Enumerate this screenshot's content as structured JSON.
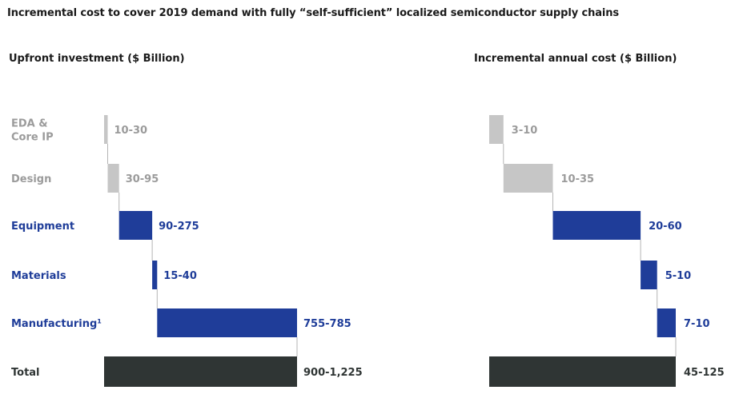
{
  "title": "Incremental cost to cover 2019 demand with fully “self-sufficient” localized semiconductor supply chains",
  "colors": {
    "gray": "#c6c6c6",
    "gray_text": "#9b9b9b",
    "blue": "#1f3d99",
    "dark": "#2f3534",
    "connector": "#b5b5b5"
  },
  "chart_data": [
    {
      "type": "bar",
      "subtitle": "Upfront investment ($ Billion)",
      "categories": [
        "EDA & Core IP",
        "Design",
        "Equipment",
        "Materials",
        "Manufacturing¹",
        "Total"
      ],
      "category_lines": [
        [
          "EDA &",
          "Core IP"
        ],
        [
          "Design"
        ],
        [
          "Equipment"
        ],
        [
          "Materials"
        ],
        [
          "Manufacturing¹"
        ],
        [
          "Total"
        ]
      ],
      "value_labels": [
        "10-30",
        "30-95",
        "90-275",
        "15-40",
        "755-785",
        "900-1,225"
      ],
      "values": [
        20,
        62.5,
        182.5,
        27.5,
        770,
        1062.5
      ],
      "styles": [
        "gray",
        "gray",
        "blue",
        "blue",
        "blue",
        "dark"
      ],
      "is_total": [
        false,
        false,
        false,
        false,
        false,
        true
      ]
    },
    {
      "type": "bar",
      "subtitle": "Incremental annual cost ($ Billion)",
      "categories": [
        "EDA & Core IP",
        "Design",
        "Equipment",
        "Materials",
        "Manufacturing¹",
        "Total"
      ],
      "value_labels": [
        "3-10",
        "10-35",
        "20-60",
        "5-10",
        "7-10",
        "45-125"
      ],
      "values": [
        6.5,
        22.5,
        40,
        7.5,
        8.5,
        85
      ],
      "styles": [
        "gray",
        "gray",
        "blue",
        "blue",
        "blue",
        "dark"
      ],
      "is_total": [
        false,
        false,
        false,
        false,
        false,
        true
      ]
    }
  ]
}
